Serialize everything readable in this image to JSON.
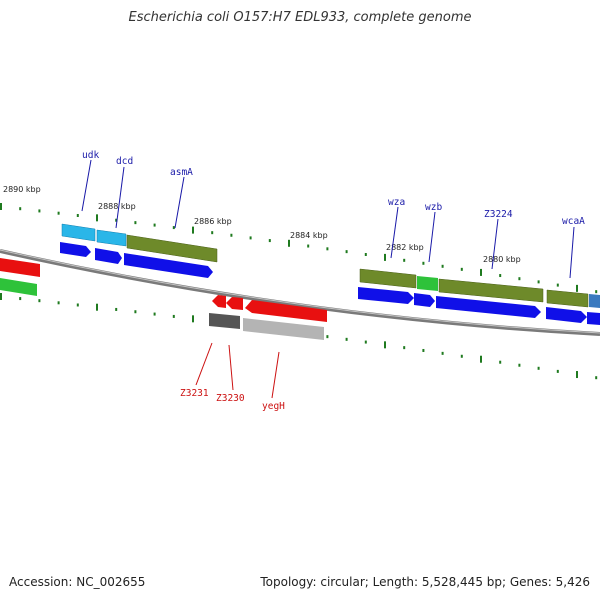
{
  "title": "Escherichia coli O157:H7 EDL933, complete genome",
  "footer": {
    "accession": "Accession: NC_002655",
    "summary": "Topology: circular; Length: 5,528,445 bp; Genes: 5,426"
  },
  "colors": {
    "backbone": "#8a8a8a",
    "tick": "#1f7a1f",
    "forward_cds": "#1010e8",
    "reverse_cds": "#e81010",
    "forward_label": "#1a1aa8",
    "reverse_label": "#cc1111",
    "olive": "#6e8a2a",
    "cyan": "#2ab6e8",
    "green": "#2ec23a",
    "grey_dark": "#555555",
    "grey_light": "#b4b4b4"
  },
  "coordinate_labels": [
    "2890 kbp",
    "2888 kbp",
    "2886 kbp",
    "2884 kbp",
    "2882 kbp",
    "2880 kbp"
  ],
  "forward_gene_labels": [
    "udk",
    "dcd",
    "asmA",
    "wza",
    "wzb",
    "Z3224",
    "wcaA"
  ],
  "reverse_gene_labels": [
    "Z3231",
    "Z3230",
    "yegH"
  ]
}
